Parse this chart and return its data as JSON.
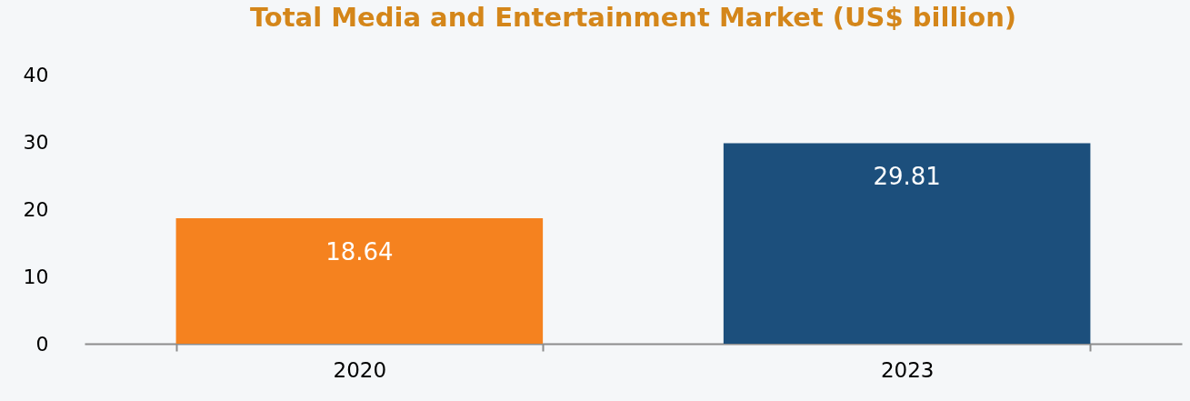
{
  "chart_data": {
    "type": "bar",
    "title": "Total Media and Entertainment Market (US$ billion)",
    "categories": [
      "2020",
      "2023"
    ],
    "values": [
      18.64,
      29.81
    ],
    "colors": [
      "#f5821f",
      "#1c4f7c"
    ],
    "ylim": [
      0,
      40
    ],
    "yticks": [
      0,
      10,
      20,
      30,
      40
    ],
    "grid": false,
    "data_labels": true
  }
}
